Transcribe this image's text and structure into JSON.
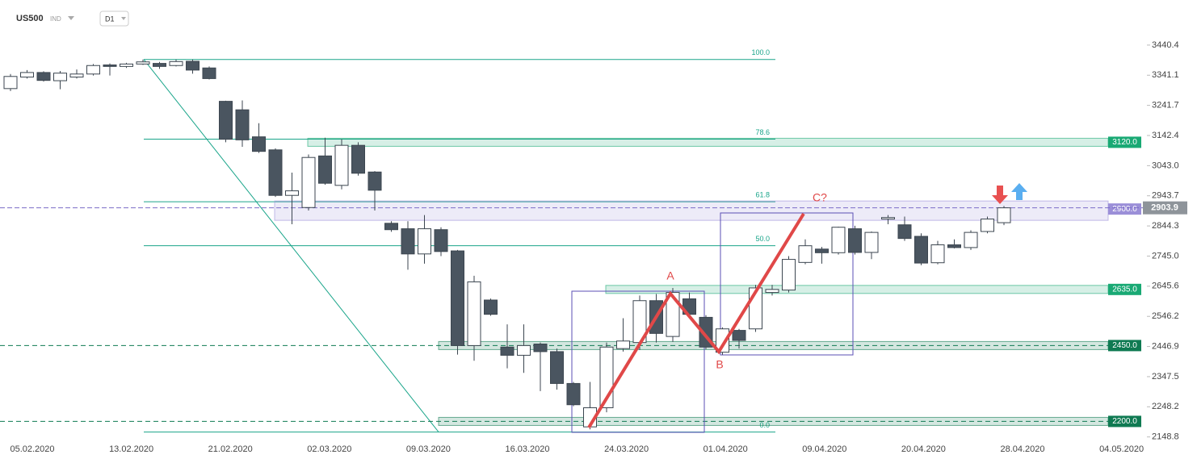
{
  "header": {
    "symbol": "US500",
    "market": "IND",
    "interval": "D1"
  },
  "chart_data": {
    "type": "candlestick",
    "open": [
      3297,
      3335,
      3350,
      3323,
      3335,
      3345,
      3375,
      3370,
      3378,
      3380,
      3373,
      3387,
      3365,
      3255,
      3227,
      3138,
      3095,
      2945,
      2905,
      3075,
      2978,
      3110,
      3022,
      2853,
      2835,
      2752,
      2832,
      2762,
      2450,
      2600,
      2445,
      2418,
      2455,
      2430,
      2325,
      2182,
      2245,
      2440,
      2460,
      2598,
      2480,
      2604,
      2543,
      2428,
      2500,
      2505,
      2625,
      2633,
      2724,
      2768,
      2756,
      2835,
      2757,
      2867,
      2848,
      2810,
      2723,
      2782,
      2773,
      2826,
      2855
    ],
    "high": [
      3345,
      3358,
      3354,
      3355,
      3360,
      3378,
      3380,
      3382,
      3393,
      3385,
      3393,
      3393,
      3370,
      3257,
      3258,
      3183,
      3100,
      3020,
      3080,
      3135,
      3130,
      3120,
      3025,
      2860,
      2860,
      2880,
      2840,
      2765,
      2680,
      2605,
      2520,
      2520,
      2460,
      2440,
      2330,
      2330,
      2460,
      2540,
      2615,
      2620,
      2640,
      2625,
      2550,
      2510,
      2505,
      2650,
      2650,
      2745,
      2800,
      2775,
      2842,
      2845,
      2826,
      2880,
      2875,
      2820,
      2795,
      2800,
      2830,
      2875,
      2910
    ],
    "low": [
      3289,
      3330,
      3320,
      3295,
      3330,
      3340,
      3340,
      3365,
      3375,
      3362,
      3370,
      3346,
      3327,
      3120,
      3105,
      3085,
      2940,
      2850,
      2895,
      2980,
      2965,
      3010,
      2895,
      2825,
      2700,
      2720,
      2745,
      2420,
      2400,
      2548,
      2375,
      2360,
      2300,
      2305,
      2250,
      2174,
      2230,
      2430,
      2435,
      2460,
      2462,
      2540,
      2438,
      2420,
      2440,
      2495,
      2615,
      2625,
      2718,
      2720,
      2750,
      2750,
      2735,
      2850,
      2795,
      2715,
      2718,
      2770,
      2765,
      2820,
      2847
    ],
    "close": [
      3337,
      3350,
      3324,
      3348,
      3345,
      3373,
      3370,
      3378,
      3385,
      3370,
      3386,
      3358,
      3330,
      3130,
      3128,
      3090,
      2945,
      2960,
      3070,
      2985,
      3110,
      3018,
      2962,
      2832,
      2752,
      2835,
      2760,
      2450,
      2660,
      2553,
      2418,
      2450,
      2430,
      2325,
      2255,
      2245,
      2445,
      2465,
      2598,
      2490,
      2625,
      2553,
      2445,
      2505,
      2467,
      2640,
      2635,
      2734,
      2779,
      2756,
      2840,
      2757,
      2823,
      2872,
      2803,
      2722,
      2782,
      2773,
      2823,
      2867,
      2904
    ],
    "up_color": "#ffffff",
    "down_color": "#4a5560",
    "wick_color": "#3c4650",
    "x_labels": [
      "05.02.2020",
      "13.02.2020",
      "21.02.2020",
      "02.03.2020",
      "09.03.2020",
      "16.03.2020",
      "24.03.2020",
      "01.04.2020",
      "09.04.2020",
      "20.04.2020",
      "28.04.2020",
      "04.05.2020"
    ],
    "ylim": [
      2140,
      3589
    ],
    "yticks": [
      3440.4,
      3341.1,
      3241.7,
      3142.4,
      {
        "value": 3043,
        "label": "3043.0"
      },
      2943.7,
      2844.3,
      {
        "value": 2745,
        "label": "2745.0"
      },
      2645.6,
      2546.2,
      2446.9,
      2347.5,
      2248.2,
      2148.8
    ],
    "levels": [
      {
        "value": 3120,
        "label": "3120.0",
        "color": "#19a974"
      },
      {
        "value": 2900,
        "label": "2900.0",
        "color": "#9b8fd8"
      },
      {
        "value": 2635,
        "label": "2635.0",
        "color": "#19a974"
      },
      {
        "value": 2450,
        "label": "2450.0",
        "color": "#0f7a52"
      },
      {
        "value": 2200,
        "label": "2200.0",
        "color": "#0f7a52"
      }
    ],
    "last_price": 2903.9,
    "fibonacci": {
      "high": 3393,
      "low": 2165,
      "color": "#1aa58a",
      "levels": [
        {
          "value": 100,
          "label": "100.0"
        },
        78.6,
        61.8,
        {
          "value": 50,
          "label": "50.0"
        },
        {
          "value": 0,
          "label": "0.0"
        }
      ]
    },
    "annotations": [
      "A",
      "B",
      "C?"
    ]
  }
}
